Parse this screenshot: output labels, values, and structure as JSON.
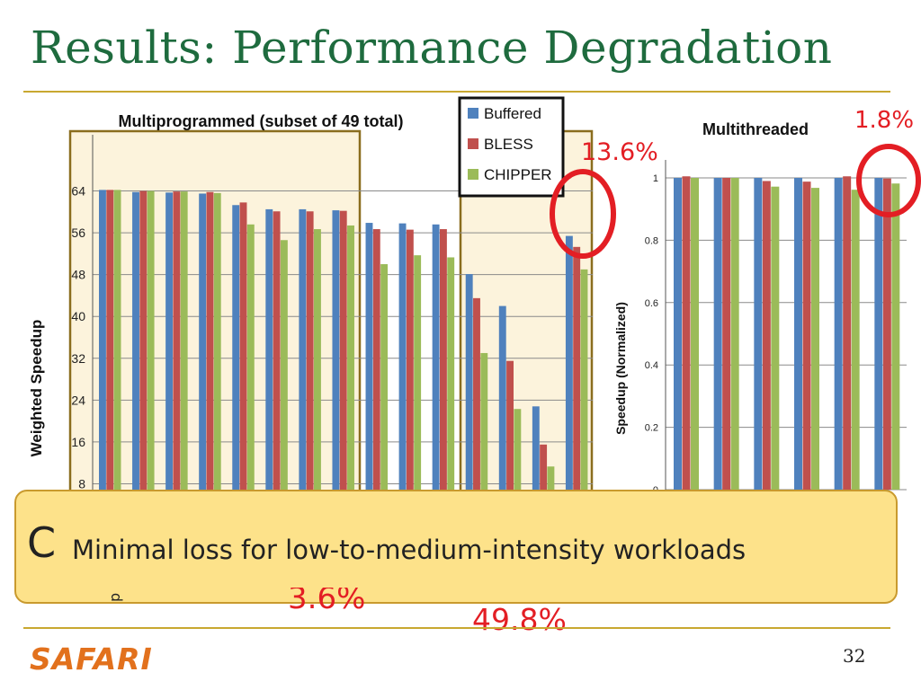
{
  "slide": {
    "title": "Results: Performance Degradation",
    "page_number": "32",
    "logo_text": "SAFARI",
    "callout": {
      "marker": "C",
      "text": "Minimal loss for low-to-medium-intensity workloads"
    },
    "annotations": {
      "multithreaded_loss": "1.8%",
      "multiprogrammed_high_loss": "13.6%",
      "low_loss": "3.6%",
      "worst_loss": "49.8%"
    },
    "partial_text": "p"
  },
  "colors": {
    "title": "#1e6b3e",
    "rule": "#c8a830",
    "buffered": "#4f81bd",
    "bless": "#c0504d",
    "chipper": "#9bbb59",
    "annotation": "#e31e24",
    "callout_fill": "#fde28a",
    "logo": "#e2711d"
  },
  "chart_data": [
    {
      "type": "bar",
      "title": "Multiprogrammed (subset of 49 total)",
      "ylabel": "Weighted Speedup",
      "xlabel": "",
      "ylim": [
        0,
        72
      ],
      "yticks": [
        "8",
        "16",
        "24",
        "32",
        "40",
        "48",
        "56",
        "64"
      ],
      "legend_position": "top-right",
      "legend": [
        "Buffered",
        "BLESS",
        "CHIPPER"
      ],
      "series": [
        {
          "name": "Buffered",
          "values": [
            64.2,
            63.8,
            63.7,
            63.5,
            61.3,
            60.5,
            60.5,
            60.3,
            57.9,
            57.8,
            57.6,
            48.1,
            42.0,
            22.8,
            55.4
          ]
        },
        {
          "name": "BLESS",
          "values": [
            64.2,
            64.0,
            63.9,
            63.8,
            61.8,
            60.1,
            60.1,
            60.2,
            56.7,
            56.6,
            56.7,
            43.5,
            31.5,
            15.5,
            53.3
          ]
        },
        {
          "name": "CHIPPER",
          "values": [
            64.2,
            64.0,
            63.9,
            63.6,
            57.6,
            54.6,
            56.7,
            57.4,
            50.0,
            51.7,
            51.3,
            33.0,
            22.3,
            11.3,
            49.0
          ]
        }
      ]
    },
    {
      "type": "bar",
      "title": "Multithreaded",
      "ylabel": "Speedup (Normalized)",
      "xlabel": "",
      "ylim": [
        0,
        1
      ],
      "yticks": [
        "0",
        "0.2",
        "0.4",
        "0.6",
        "0.8",
        "1"
      ],
      "series": [
        {
          "name": "Buffered",
          "values": [
            1.0,
            1.0,
            1.0,
            1.0,
            1.0,
            1.0
          ]
        },
        {
          "name": "BLESS",
          "values": [
            1.005,
            1.0,
            0.99,
            0.988,
            1.005,
            0.998
          ]
        },
        {
          "name": "CHIPPER",
          "values": [
            1.0,
            1.0,
            0.972,
            0.968,
            0.962,
            0.982
          ]
        }
      ]
    }
  ]
}
